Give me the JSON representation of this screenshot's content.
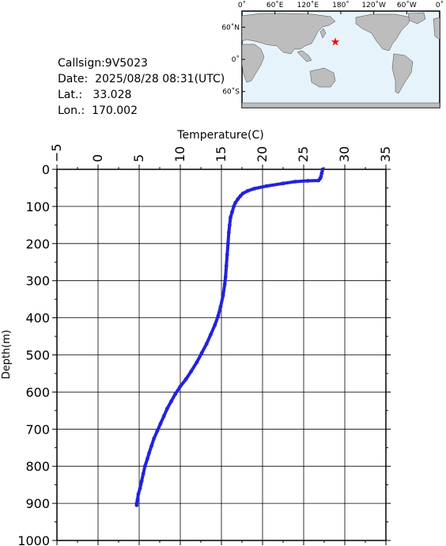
{
  "info": {
    "callsign": "Callsign:9V5023",
    "date_label": "Date:",
    "date_value": "2025/08/28 08:31(UTC)",
    "lat_label": "Lat.:",
    "lat_value": "33.028",
    "lon_label": "Lon.:",
    "lon_value": "170.002"
  },
  "map": {
    "lon_ticks": [
      "0˚",
      "60˚E",
      "120˚E",
      "180˚",
      "120˚W",
      "60˚W",
      "0˚"
    ],
    "lat_ticks": [
      "60˚N",
      "0˚",
      "60˚S"
    ],
    "marker_lon": 170.002,
    "marker_lat": 33.028,
    "ocean_color": "#e6f3fb",
    "land_color": "#bdbdbd",
    "marker_color": "#ff0000"
  },
  "chart_data": {
    "type": "line",
    "xlabel": "Temperature(C)",
    "ylabel": "Depth(m)",
    "xlim": [
      -5,
      35
    ],
    "ylim": [
      0,
      1000
    ],
    "y_inverted": true,
    "x_ticks": [
      -5,
      0,
      5,
      10,
      15,
      20,
      25,
      30,
      35
    ],
    "y_ticks": [
      0,
      100,
      200,
      300,
      400,
      500,
      600,
      700,
      800,
      900,
      1000
    ],
    "grid": true,
    "line_color": "#2222dd",
    "series": [
      {
        "x": [
          27.3,
          27.2,
          27.1,
          27.0,
          26.8,
          25.5,
          24.0,
          22.5,
          20.5,
          19.0,
          18.2,
          17.6,
          17.3,
          17.0,
          16.7,
          16.5,
          16.3,
          16.1,
          16.0,
          15.9,
          15.8,
          15.7,
          15.6,
          15.5,
          15.4,
          15.2,
          14.9,
          14.6,
          14.2,
          13.7,
          13.2,
          12.6,
          12.0,
          11.3,
          10.7,
          10.0,
          9.4,
          8.9,
          8.4,
          8.0,
          7.6,
          7.2,
          6.8,
          6.5,
          6.2,
          6.0,
          5.7,
          5.5,
          5.3,
          5.1,
          4.9,
          4.8,
          4.7,
          4.7
        ],
        "y": [
          0,
          10,
          20,
          25,
          30,
          31,
          33,
          38,
          45,
          52,
          58,
          65,
          72,
          80,
          90,
          100,
          115,
          130,
          150,
          170,
          200,
          230,
          260,
          290,
          310,
          340,
          370,
          395,
          420,
          445,
          470,
          495,
          520,
          545,
          565,
          585,
          605,
          625,
          645,
          665,
          685,
          705,
          725,
          745,
          765,
          780,
          800,
          820,
          840,
          860,
          875,
          890,
          900,
          905
        ]
      }
    ]
  }
}
